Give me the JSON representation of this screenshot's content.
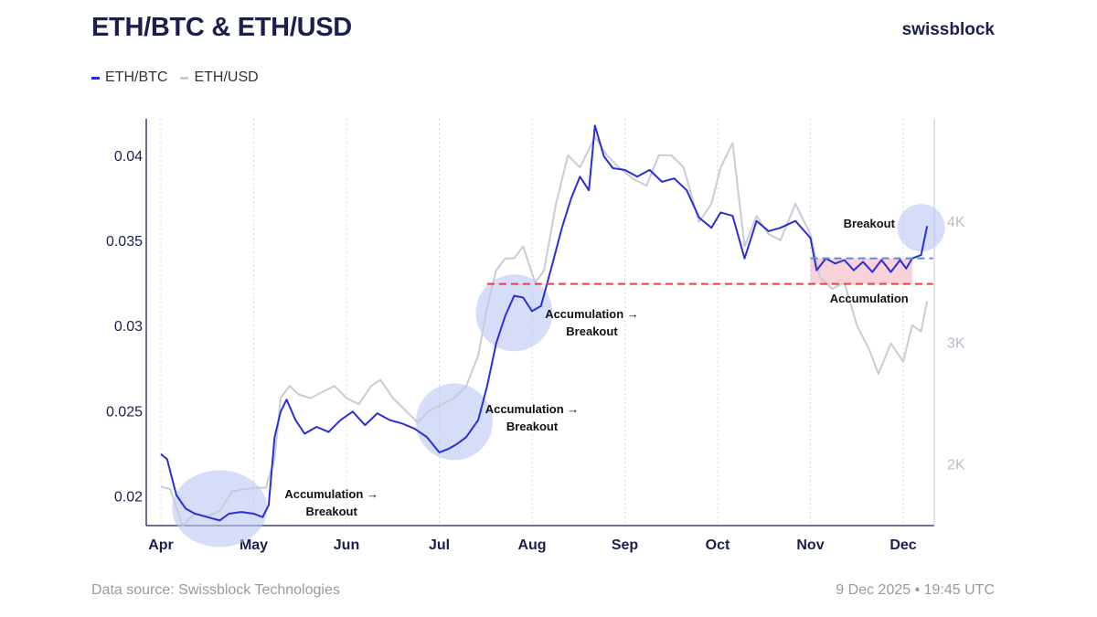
{
  "header": {
    "title": "ETH/BTC & ETH/USD",
    "brand": "swissblock"
  },
  "footer": {
    "source": "Data source: Swissblock Technologies",
    "timestamp": "9 Dec 2025 • 19:45 UTC"
  },
  "colors": {
    "eth_btc": "#2a2fd4",
    "eth_usd": "#c9ccd6",
    "highlight": "#b9c6f3",
    "support": "#e34040",
    "range": "#f7c6d0",
    "breakout_line": "#5b8ad8"
  },
  "chart_data": {
    "type": "line",
    "title": "ETH/BTC & ETH/USD",
    "x_ticks": [
      "Apr",
      "May",
      "Jun",
      "Jul",
      "Aug",
      "Sep",
      "Oct",
      "Nov",
      "Dec"
    ],
    "y_left": {
      "ticks": [
        0.02,
        0.025,
        0.03,
        0.035,
        0.04
      ],
      "tick_labels": [
        "0.02",
        "0.025",
        "0.03",
        "0.035",
        "0.04"
      ],
      "range": [
        0.0183,
        0.0422
      ]
    },
    "y_right": {
      "ticks": [
        2000,
        3000,
        4000
      ],
      "tick_labels": [
        "2K",
        "3K",
        "4K"
      ],
      "range": [
        1500,
        4850
      ]
    },
    "grid": "vertical dotted at month starts",
    "legend": "top-left",
    "series": [
      {
        "name": "ETH/USD",
        "axis": "right",
        "points": [
          [
            "2025-04-01",
            1820
          ],
          [
            "2025-04-04",
            1800
          ],
          [
            "2025-04-08",
            1500
          ],
          [
            "2025-04-12",
            1600
          ],
          [
            "2025-04-16",
            1580
          ],
          [
            "2025-04-20",
            1620
          ],
          [
            "2025-04-24",
            1780
          ],
          [
            "2025-04-28",
            1800
          ],
          [
            "2025-05-01",
            1810
          ],
          [
            "2025-05-05",
            1810
          ],
          [
            "2025-05-08",
            2050
          ],
          [
            "2025-05-10",
            2550
          ],
          [
            "2025-05-13",
            2650
          ],
          [
            "2025-05-16",
            2580
          ],
          [
            "2025-05-20",
            2550
          ],
          [
            "2025-05-24",
            2600
          ],
          [
            "2025-05-28",
            2650
          ],
          [
            "2025-06-01",
            2550
          ],
          [
            "2025-06-05",
            2500
          ],
          [
            "2025-06-09",
            2650
          ],
          [
            "2025-06-12",
            2700
          ],
          [
            "2025-06-16",
            2550
          ],
          [
            "2025-06-20",
            2450
          ],
          [
            "2025-06-24",
            2350
          ],
          [
            "2025-06-28",
            2450
          ],
          [
            "2025-07-02",
            2500
          ],
          [
            "2025-07-06",
            2550
          ],
          [
            "2025-07-10",
            2650
          ],
          [
            "2025-07-14",
            2900
          ],
          [
            "2025-07-17",
            3300
          ],
          [
            "2025-07-20",
            3600
          ],
          [
            "2025-07-23",
            3700
          ],
          [
            "2025-07-26",
            3700
          ],
          [
            "2025-07-29",
            3800
          ],
          [
            "2025-08-02",
            3500
          ],
          [
            "2025-08-05",
            3600
          ],
          [
            "2025-08-09",
            4150
          ],
          [
            "2025-08-13",
            4550
          ],
          [
            "2025-08-17",
            4450
          ],
          [
            "2025-08-22",
            4700
          ],
          [
            "2025-08-26",
            4550
          ],
          [
            "2025-08-30",
            4450
          ],
          [
            "2025-09-04",
            4350
          ],
          [
            "2025-09-08",
            4300
          ],
          [
            "2025-09-12",
            4550
          ],
          [
            "2025-09-16",
            4550
          ],
          [
            "2025-09-20",
            4450
          ],
          [
            "2025-09-25",
            4000
          ],
          [
            "2025-09-29",
            4150
          ],
          [
            "2025-10-02",
            4450
          ],
          [
            "2025-10-06",
            4650
          ],
          [
            "2025-10-10",
            3800
          ],
          [
            "2025-10-14",
            4050
          ],
          [
            "2025-10-18",
            3900
          ],
          [
            "2025-10-22",
            3850
          ],
          [
            "2025-10-27",
            4150
          ],
          [
            "2025-11-01",
            3900
          ],
          [
            "2025-11-04",
            3550
          ],
          [
            "2025-11-08",
            3450
          ],
          [
            "2025-11-12",
            3500
          ],
          [
            "2025-11-16",
            3150
          ],
          [
            "2025-11-20",
            2950
          ],
          [
            "2025-11-23",
            2750
          ],
          [
            "2025-11-27",
            3000
          ],
          [
            "2025-12-01",
            2850
          ],
          [
            "2025-12-04",
            3150
          ],
          [
            "2025-12-07",
            3100
          ],
          [
            "2025-12-09",
            3350
          ]
        ]
      },
      {
        "name": "ETH/BTC",
        "axis": "left",
        "points": [
          [
            "2025-04-01",
            0.0225
          ],
          [
            "2025-04-03",
            0.0222
          ],
          [
            "2025-04-06",
            0.0201
          ],
          [
            "2025-04-09",
            0.0193
          ],
          [
            "2025-04-12",
            0.019
          ],
          [
            "2025-04-16",
            0.0188
          ],
          [
            "2025-04-20",
            0.0186
          ],
          [
            "2025-04-23",
            0.019
          ],
          [
            "2025-04-27",
            0.0191
          ],
          [
            "2025-05-01",
            0.019
          ],
          [
            "2025-05-04",
            0.0188
          ],
          [
            "2025-05-06",
            0.0195
          ],
          [
            "2025-05-08",
            0.0235
          ],
          [
            "2025-05-10",
            0.025
          ],
          [
            "2025-05-12",
            0.0257
          ],
          [
            "2025-05-15",
            0.0245
          ],
          [
            "2025-05-18",
            0.0237
          ],
          [
            "2025-05-22",
            0.0241
          ],
          [
            "2025-05-26",
            0.0238
          ],
          [
            "2025-05-30",
            0.0245
          ],
          [
            "2025-06-03",
            0.025
          ],
          [
            "2025-06-07",
            0.0242
          ],
          [
            "2025-06-11",
            0.0249
          ],
          [
            "2025-06-15",
            0.0245
          ],
          [
            "2025-06-19",
            0.0243
          ],
          [
            "2025-06-23",
            0.024
          ],
          [
            "2025-06-27",
            0.0235
          ],
          [
            "2025-07-01",
            0.0226
          ],
          [
            "2025-07-04",
            0.0228
          ],
          [
            "2025-07-07",
            0.0231
          ],
          [
            "2025-07-10",
            0.0235
          ],
          [
            "2025-07-14",
            0.0245
          ],
          [
            "2025-07-17",
            0.0265
          ],
          [
            "2025-07-20",
            0.029
          ],
          [
            "2025-07-23",
            0.0306
          ],
          [
            "2025-07-26",
            0.0318
          ],
          [
            "2025-07-29",
            0.0317
          ],
          [
            "2025-08-01",
            0.0309
          ],
          [
            "2025-08-04",
            0.0312
          ],
          [
            "2025-08-08",
            0.0338
          ],
          [
            "2025-08-11",
            0.0358
          ],
          [
            "2025-08-14",
            0.0375
          ],
          [
            "2025-08-17",
            0.0388
          ],
          [
            "2025-08-20",
            0.038
          ],
          [
            "2025-08-22",
            0.0418
          ],
          [
            "2025-08-25",
            0.04
          ],
          [
            "2025-08-28",
            0.0393
          ],
          [
            "2025-09-01",
            0.0392
          ],
          [
            "2025-09-05",
            0.0388
          ],
          [
            "2025-09-09",
            0.0392
          ],
          [
            "2025-09-13",
            0.0385
          ],
          [
            "2025-09-17",
            0.0387
          ],
          [
            "2025-09-21",
            0.038
          ],
          [
            "2025-09-25",
            0.0364
          ],
          [
            "2025-09-29",
            0.0358
          ],
          [
            "2025-10-02",
            0.0367
          ],
          [
            "2025-10-06",
            0.0365
          ],
          [
            "2025-10-10",
            0.034
          ],
          [
            "2025-10-14",
            0.0362
          ],
          [
            "2025-10-18",
            0.0356
          ],
          [
            "2025-10-22",
            0.0358
          ],
          [
            "2025-10-27",
            0.0362
          ],
          [
            "2025-11-01",
            0.0352
          ],
          [
            "2025-11-03",
            0.0333
          ],
          [
            "2025-11-06",
            0.034
          ],
          [
            "2025-11-09",
            0.0337
          ],
          [
            "2025-11-12",
            0.0339
          ],
          [
            "2025-11-15",
            0.0333
          ],
          [
            "2025-11-18",
            0.0338
          ],
          [
            "2025-11-21",
            0.0332
          ],
          [
            "2025-11-24",
            0.0339
          ],
          [
            "2025-11-27",
            0.0332
          ],
          [
            "2025-11-30",
            0.0339
          ],
          [
            "2025-12-02",
            0.0334
          ],
          [
            "2025-12-04",
            0.034
          ],
          [
            "2025-12-07",
            0.0342
          ],
          [
            "2025-12-09",
            0.0359
          ]
        ]
      }
    ],
    "annotations": {
      "circles": [
        {
          "date": "2025-04-20",
          "value": 0.0193,
          "rx": 52,
          "ry": 42
        },
        {
          "date": "2025-07-06",
          "value": 0.0244,
          "rx": 42,
          "ry": 42
        },
        {
          "date": "2025-07-26",
          "value": 0.0308,
          "rx": 42,
          "ry": 42
        },
        {
          "date": "2025-12-07",
          "value": 0.0358,
          "rx": 26,
          "ry": 26
        }
      ],
      "labels": [
        {
          "lines": [
            "Accumulation →",
            "Breakout"
          ],
          "date": "2025-05-27",
          "value": 0.0199
        },
        {
          "lines": [
            "Accumulation →",
            "Breakout"
          ],
          "date": "2025-08-21",
          "value": 0.0305
        },
        {
          "lines": [
            "Accumulation →",
            "Breakout"
          ],
          "date": "2025-08-01",
          "value": 0.0249
        },
        {
          "lines": [
            "Breakout"
          ],
          "date": "2025-11-20",
          "value": 0.0358
        },
        {
          "lines": [
            "Accumulation"
          ],
          "date": "2025-11-20",
          "value": 0.0314
        }
      ],
      "support_line": {
        "value": 0.0325,
        "from": "2025-07-17",
        "to": "2025-12-11"
      },
      "breakout_line": {
        "value": 0.034,
        "from": "2025-11-01",
        "to": "2025-12-11"
      },
      "range_box": {
        "from": "2025-11-01",
        "to": "2025-12-04",
        "low": 0.0325,
        "high": 0.034
      }
    }
  }
}
